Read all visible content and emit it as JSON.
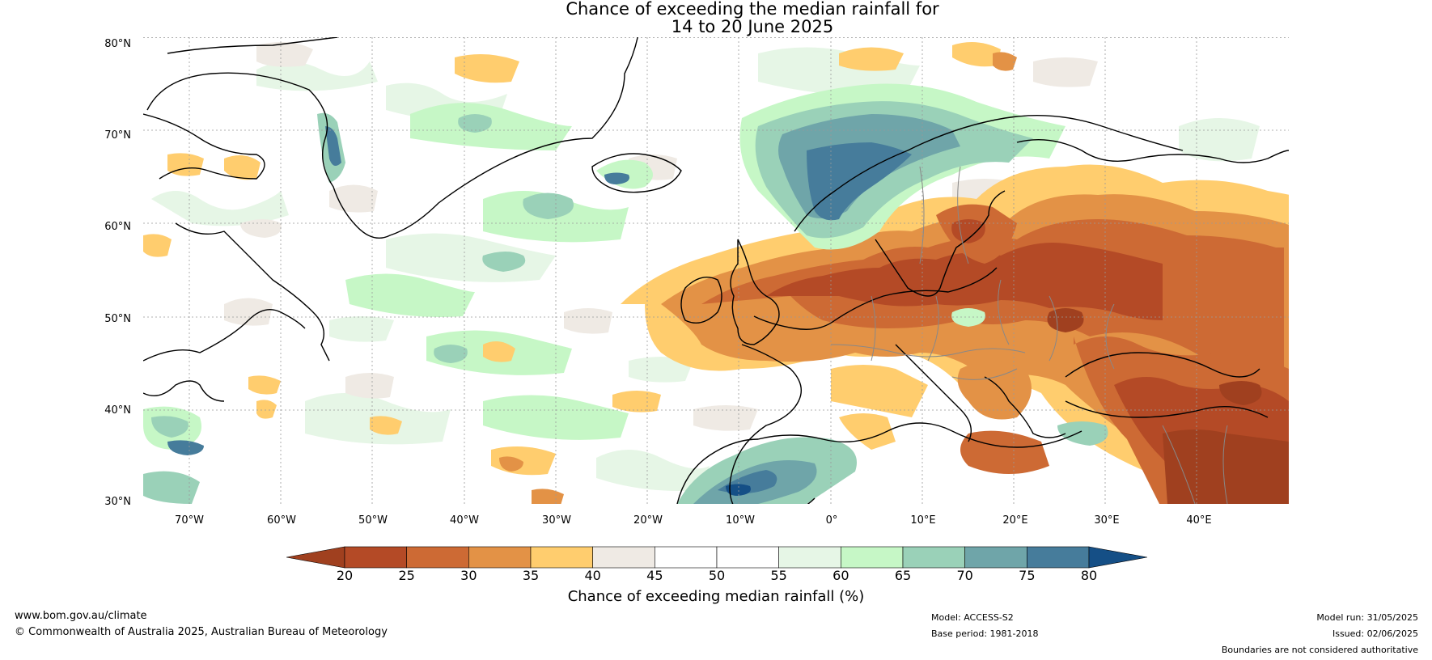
{
  "title": {
    "line1": "Chance of exceeding the median rainfall for",
    "line2": "14 to 20 June 2025"
  },
  "map": {
    "lat_labels": [
      "80°N",
      "70°N",
      "60°N",
      "50°N",
      "40°N",
      "30°N"
    ],
    "lon_labels": [
      "70°W",
      "60°W",
      "50°W",
      "40°W",
      "30°W",
      "20°W",
      "10°W",
      "0°",
      "10°E",
      "20°E",
      "30°E",
      "40°E"
    ],
    "lat_range": [
      30,
      80
    ],
    "lon_range": [
      -75,
      50
    ],
    "grid": true
  },
  "colorbar": {
    "ticks": [
      "20",
      "25",
      "30",
      "35",
      "40",
      "45",
      "50",
      "55",
      "60",
      "65",
      "70",
      "75",
      "80"
    ],
    "colors": [
      "#a0401f",
      "#b44a26",
      "#cd6a34",
      "#e39246",
      "#ffcd6e",
      "#efeae4",
      "#ffffff",
      "#ffffff",
      "#e6f6e6",
      "#c6f7c6",
      "#9ad1b8",
      "#6fa5a9",
      "#467c9b",
      "#154f86"
    ],
    "label": "Chance of exceeding median rainfall (%)"
  },
  "footer": {
    "website": "www.bom.gov.au/climate",
    "copyright": "© Commonwealth of Australia 2025, Australian Bureau of Meteorology",
    "model": "Model: ACCESS-S2",
    "base_period": "Base period: 1981-2018",
    "model_run": "Model run: 31/05/2025",
    "issued": "Issued: 02/06/2025",
    "disclaimer": "Boundaries are not considered authoritative"
  }
}
